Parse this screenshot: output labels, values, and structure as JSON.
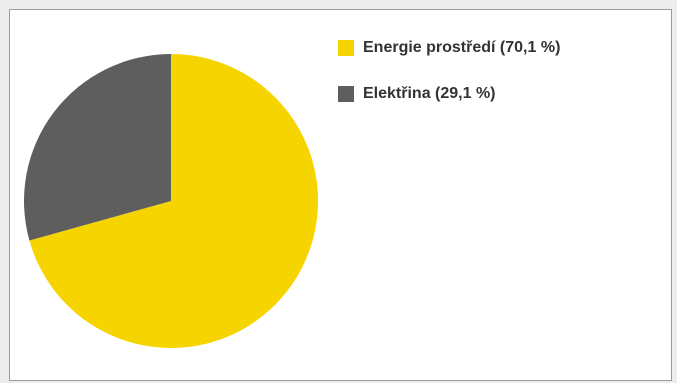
{
  "chart_data": {
    "type": "pie",
    "start_angle_deg": 0,
    "direction": "clockwise",
    "legend_position": "top-right",
    "slices": [
      {
        "label": "Energie prostředí (70,1 %)",
        "value": 70.1,
        "color": "#f5d400"
      },
      {
        "label": "Elektřina (29,1 %)",
        "value": 29.1,
        "color": "#5e5e5e"
      }
    ]
  }
}
